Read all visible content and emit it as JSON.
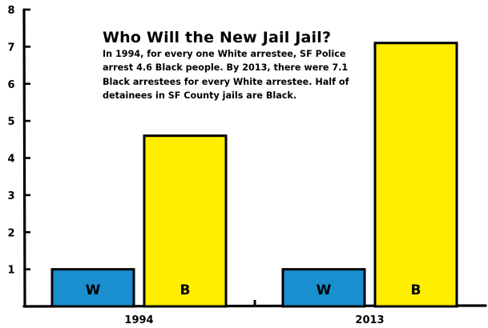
{
  "chart_data": {
    "type": "bar",
    "title": "Who Will the New Jail Jail?",
    "subtitle_lines": [
      "In 1994, for every one White arrestee, SF Police",
      "arrest 4.6 Black people. By 2013, there were 7.1",
      "Black arrestees for every White arrestee. Half of",
      "detainees in SF County jails are Black."
    ],
    "categories": [
      "1994",
      "2013"
    ],
    "series": [
      {
        "name": "W",
        "values": [
          1,
          1
        ],
        "color": "#1a8fd0"
      },
      {
        "name": "B",
        "values": [
          4.6,
          7.1
        ],
        "color": "#ffee00"
      }
    ],
    "ylim": [
      0,
      8
    ],
    "yticks": [
      "1",
      "2",
      "3",
      "4",
      "5",
      "6",
      "7",
      "8"
    ],
    "xlabel": "",
    "ylabel": "",
    "grid": false,
    "legend": "none"
  }
}
